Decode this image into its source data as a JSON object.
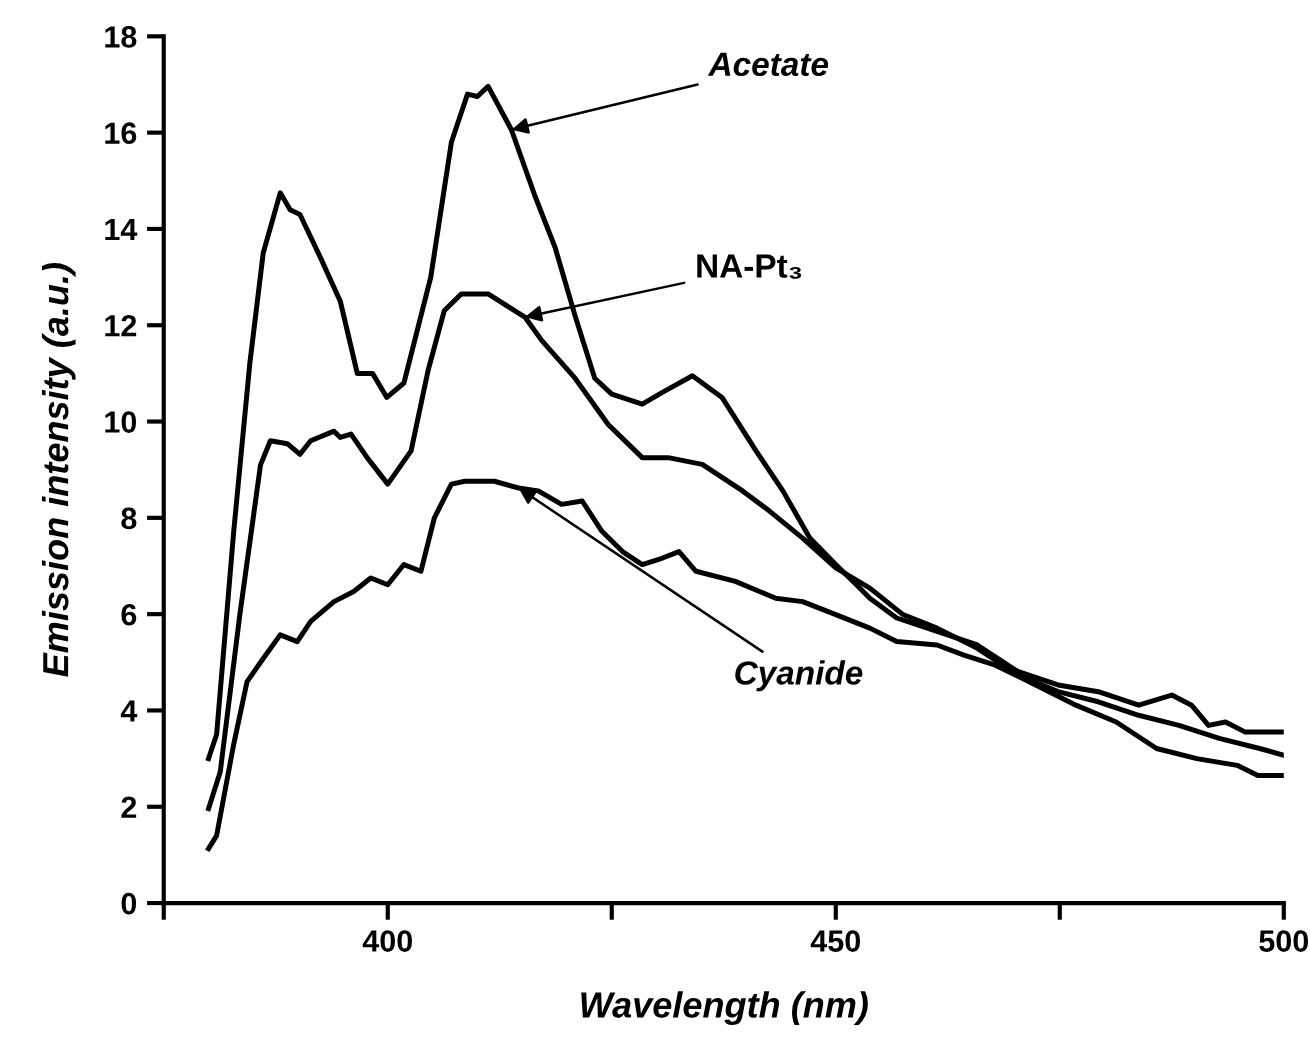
{
  "chart_data": {
    "type": "line",
    "xlabel": "Wavelength (nm)",
    "ylabel": "Emission intensity (a.u.)",
    "xlim": [
      375,
      500
    ],
    "xticks": [
      {
        "value": 375,
        "label": null
      },
      400,
      {
        "value": 425,
        "label": null
      },
      450,
      {
        "value": 475,
        "label": null
      },
      500
    ],
    "ylim": [
      0,
      18
    ],
    "yticks": [
      0,
      2,
      4,
      6,
      8,
      10,
      12,
      14,
      16,
      18
    ],
    "grid": false,
    "legend": false,
    "marker": "none",
    "line_style": "solid",
    "series": [
      {
        "name": "Acetate",
        "color": "#000000",
        "x": [
          380,
          380.9,
          382.8,
          384.6,
          386.1,
          388.0,
          389.1,
          390.2,
          392.5,
          394.7,
          396.6,
          398.3,
          399.9,
          401.8,
          404.8,
          407.1,
          408.9,
          410,
          411.2,
          413.8,
          416.4,
          418.7,
          420.9,
          423.1,
          425.0,
          428.4,
          430.6,
          434.0,
          437.3,
          441.1,
          444.1,
          447.1,
          450.0,
          452.3,
          453.8,
          456.8,
          461.3,
          465.8,
          470.3,
          474.8,
          479.3,
          483.8,
          487.5,
          489.7,
          491.6,
          493.5,
          495.7,
          498,
          500
        ],
        "values": [
          3.0,
          3.5,
          7.7,
          11.2,
          13.5,
          14.75,
          14.4,
          14.3,
          13.4,
          12.5,
          11.0,
          11.0,
          10.5,
          10.8,
          13.0,
          15.8,
          16.8,
          16.75,
          16.96,
          16.06,
          14.7,
          13.6,
          12.2,
          10.9,
          10.57,
          10.36,
          10.6,
          10.95,
          10.5,
          9.39,
          8.56,
          7.58,
          7.03,
          6.61,
          6.33,
          5.92,
          5.64,
          5.36,
          4.81,
          4.53,
          4.39,
          4.11,
          4.32,
          4.11,
          3.69,
          3.76,
          3.55,
          3.55,
          3.55
        ]
      },
      {
        "name": "NA-Pt₃",
        "color": "#000000",
        "x": [
          380,
          381.3,
          383.5,
          385.8,
          386.9,
          388.8,
          390.2,
          391.4,
          394.0,
          394.7,
          395.9,
          397.7,
          400.0,
          402.6,
          404.5,
          406.3,
          408.2,
          411.2,
          415.3,
          417.2,
          420.9,
          424.6,
          428.4,
          431.3,
          435.1,
          439.6,
          442.6,
          446.3,
          450,
          453.8,
          457.5,
          461.3,
          465.8,
          470.3,
          474.8,
          479.3,
          483.8,
          488.3,
          492.8,
          497.3,
          500
        ],
        "values": [
          1.96,
          2.72,
          6.0,
          9.1,
          9.6,
          9.54,
          9.32,
          9.6,
          9.8,
          9.67,
          9.74,
          9.25,
          8.7,
          9.39,
          11.06,
          12.3,
          12.65,
          12.65,
          12.17,
          11.68,
          10.9,
          9.94,
          9.25,
          9.25,
          9.11,
          8.56,
          8.14,
          7.58,
          6.96,
          6.54,
          5.99,
          5.71,
          5.29,
          4.74,
          4.39,
          4.18,
          3.9,
          3.69,
          3.42,
          3.21,
          3.07
        ]
      },
      {
        "name": "Cyanide",
        "color": "#000000",
        "x": [
          380,
          380.9,
          382.8,
          384.3,
          386.1,
          388.0,
          389.9,
          391.4,
          394.0,
          396.2,
          398.1,
          400.0,
          401.8,
          403.7,
          405.2,
          407.1,
          408.6,
          411.9,
          414.6,
          416.8,
          419.4,
          421.7,
          423.9,
          426.2,
          428.4,
          430.6,
          432.5,
          434.4,
          438.8,
          443.3,
          446.3,
          450,
          453.8,
          456.8,
          461.3,
          464.3,
          467.8,
          472.3,
          476.8,
          481.3,
          485.8,
          490.3,
          494.8,
          497.1,
          500
        ],
        "values": [
          1.13,
          1.4,
          3.29,
          4.6,
          5.08,
          5.57,
          5.43,
          5.85,
          6.26,
          6.47,
          6.75,
          6.61,
          7.03,
          6.89,
          8.0,
          8.7,
          8.76,
          8.76,
          8.62,
          8.56,
          8.28,
          8.35,
          7.72,
          7.3,
          7.03,
          7.16,
          7.3,
          6.89,
          6.68,
          6.33,
          6.26,
          5.99,
          5.71,
          5.43,
          5.36,
          5.15,
          4.94,
          4.53,
          4.11,
          3.76,
          3.21,
          3.0,
          2.86,
          2.65,
          2.65
        ]
      }
    ]
  }
}
